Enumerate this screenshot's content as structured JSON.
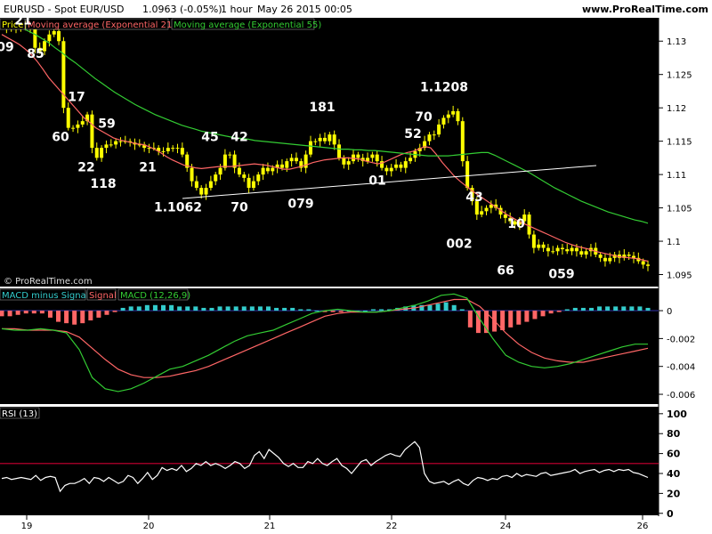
{
  "header": {
    "symbol": "EURUSD - Spot EUR/USD",
    "quote": "1.0963 (-0.05%)",
    "timeframe": "1 hour",
    "datetime": "May 26 2015 00:05",
    "website": "www.ProRealTime.com"
  },
  "watermark": "© ProRealTime.com",
  "colors": {
    "background": "#000000",
    "candle": "#ffff00",
    "ema21": "#ff6666",
    "ema55": "#33cc33",
    "trendline": "#ffffff",
    "hist_pos": "#33cccc",
    "hist_neg": "#ff6666",
    "macd": "#33cc33",
    "signal": "#ff6666",
    "rsi": "#ffffff",
    "rsi_level": "#cc0033"
  },
  "chart_data": [
    {
      "panel": "price",
      "type": "candlestick",
      "legend": [
        "Price",
        "Moving average (Exponential 21)",
        "Moving average (Exponential 55)"
      ],
      "ylim": [
        1.0932,
        1.1335
      ],
      "yticks": [
        "1.13",
        "1.125",
        "1.12",
        "1.115",
        "1.11",
        "1.105",
        "1.1",
        "1.095"
      ],
      "xticks": [
        "19",
        "20",
        "21",
        "22",
        "24",
        "26"
      ],
      "annotations": [
        "09",
        "21",
        "85",
        "60",
        "17",
        "59",
        "22",
        "118",
        "21",
        "45",
        "42",
        "1.1062",
        "70",
        "181",
        "079",
        "70",
        "52",
        "01",
        "1.1208",
        "43",
        "002",
        "10",
        "66",
        "059"
      ],
      "annotation_values": [
        1.1285,
        1.1325,
        1.1275,
        1.115,
        1.121,
        1.117,
        1.1105,
        1.108,
        1.1105,
        1.115,
        1.115,
        1.1045,
        1.1045,
        1.1195,
        1.105,
        1.118,
        1.1155,
        1.1085,
        1.1225,
        1.106,
        1.099,
        1.102,
        1.095,
        1.0945
      ],
      "close": [
        1.1325,
        1.132,
        1.1318,
        1.1325,
        1.1322,
        1.132,
        1.1318,
        1.129,
        1.1285,
        1.13,
        1.131,
        1.1315,
        1.13,
        1.12,
        1.117,
        1.117,
        1.1175,
        1.118,
        1.119,
        1.114,
        1.1125,
        1.114,
        1.1145,
        1.1145,
        1.115,
        1.115,
        1.115,
        1.1148,
        1.1145,
        1.1145,
        1.114,
        1.114,
        1.114,
        1.1135,
        1.1135,
        1.114,
        1.114,
        1.114,
        1.113,
        1.111,
        1.109,
        1.108,
        1.107,
        1.108,
        1.109,
        1.11,
        1.111,
        1.113,
        1.113,
        1.111,
        1.11,
        1.1095,
        1.108,
        1.109,
        1.11,
        1.111,
        1.1105,
        1.111,
        1.1115,
        1.111,
        1.112,
        1.1125,
        1.112,
        1.111,
        1.113,
        1.115,
        1.115,
        1.1155,
        1.115,
        1.116,
        1.1145,
        1.1125,
        1.1115,
        1.112,
        1.113,
        1.1125,
        1.112,
        1.1125,
        1.113,
        1.112,
        1.111,
        1.1105,
        1.111,
        1.1115,
        1.111,
        1.112,
        1.1125,
        1.1135,
        1.114,
        1.115,
        1.116,
        1.116,
        1.1175,
        1.1185,
        1.119,
        1.1195,
        1.118,
        1.112,
        1.108,
        1.106,
        1.104,
        1.1045,
        1.105,
        1.1055,
        1.105,
        1.104,
        1.1035,
        1.103,
        1.1025,
        1.103,
        1.104,
        1.101,
        1.099,
        1.0995,
        1.099,
        1.0985,
        1.0985,
        1.099,
        1.0988,
        1.0985,
        1.099,
        1.0985,
        1.098,
        1.0985,
        1.099,
        1.098,
        1.0975,
        1.097,
        1.0975,
        1.098,
        1.0975,
        1.098,
        1.0978,
        1.0975,
        1.097,
        1.0965,
        1.0963
      ],
      "ema21": [
        1.131,
        1.1305,
        1.13,
        1.1295,
        1.1288,
        1.128,
        1.127,
        1.1258,
        1.1245,
        1.1235,
        1.1225,
        1.1215,
        1.1205,
        1.1195,
        1.1185,
        1.1178,
        1.117,
        1.1165,
        1.116,
        1.1155,
        1.1152,
        1.115,
        1.1148,
        1.1146,
        1.1145,
        1.1142,
        1.1138,
        1.1133,
        1.1127,
        1.1122,
        1.1118,
        1.1114,
        1.1112,
        1.111,
        1.1109,
        1.111,
        1.1111,
        1.1112,
        1.1112,
        1.1112,
        1.1113,
        1.1114,
        1.1115,
        1.1116,
        1.1115,
        1.1114,
        1.1112,
        1.111,
        1.1108,
        1.1108,
        1.111,
        1.1112,
        1.1115,
        1.1118,
        1.112,
        1.1122,
        1.1123,
        1.1124,
        1.1125,
        1.1125,
        1.1124,
        1.1123,
        1.112,
        1.1118,
        1.1116,
        1.1118,
        1.1122,
        1.1126,
        1.113,
        1.1133,
        1.1135,
        1.1138,
        1.1142,
        1.114,
        1.113,
        1.1118,
        1.1108,
        1.1098,
        1.109,
        1.1083,
        1.1076,
        1.107,
        1.1064,
        1.1058,
        1.1052,
        1.1046,
        1.104,
        1.1035,
        1.103,
        1.1026,
        1.1022,
        1.1018,
        1.1014,
        1.101,
        1.1006,
        1.1002,
        1.0998,
        1.0995,
        1.0992,
        1.099,
        1.0988,
        1.0985,
        1.0983,
        1.0981,
        1.0979,
        1.0977,
        1.0976,
        1.0975,
        1.0974,
        1.0972,
        1.097
      ],
      "ema55": [
        1.133,
        1.1328,
        1.1325,
        1.132,
        1.1315,
        1.131,
        1.1304,
        1.1298,
        1.129,
        1.1283,
        1.1275,
        1.1268,
        1.126,
        1.1252,
        1.1244,
        1.1237,
        1.123,
        1.1223,
        1.1217,
        1.1211,
        1.1205,
        1.12,
        1.1195,
        1.119,
        1.1186,
        1.1182,
        1.1178,
        1.1174,
        1.1171,
        1.1168,
        1.1165,
        1.1163,
        1.1161,
        1.1159,
        1.1157,
        1.1155,
        1.1154,
        1.1153,
        1.1151,
        1.115,
        1.1149,
        1.1148,
        1.1147,
        1.1146,
        1.1145,
        1.1144,
        1.1143,
        1.1142,
        1.1141,
        1.114,
        1.1139,
        1.1138,
        1.1138,
        1.1137,
        1.1137,
        1.1136,
        1.1136,
        1.1135,
        1.1134,
        1.1133,
        1.1132,
        1.1131,
        1.113,
        1.1129,
        1.1128,
        1.1128,
        1.1128,
        1.1128,
        1.1129,
        1.113,
        1.1131,
        1.1132,
        1.1133,
        1.1133,
        1.1129,
        1.1124,
        1.1119,
        1.1114,
        1.1109,
        1.1104,
        1.1098,
        1.1092,
        1.1086,
        1.108,
        1.1075,
        1.107,
        1.1065,
        1.106,
        1.1056,
        1.1052,
        1.1048,
        1.1044,
        1.1041,
        1.1038,
        1.1035,
        1.1032,
        1.103,
        1.1027
      ]
    },
    {
      "panel": "macd",
      "type": "bar+line",
      "legend": [
        "MACD minus Signal",
        "Signal",
        "MACD (12,26,9)"
      ],
      "ylim": [
        -0.0067,
        0.0016
      ],
      "yticks": [
        "0",
        "-0.002",
        "-0.004",
        "-0.006"
      ],
      "macd": [
        -0.0013,
        -0.0014,
        -0.0014,
        -0.0013,
        -0.0014,
        -0.0016,
        -0.0028,
        -0.0048,
        -0.0056,
        -0.0058,
        -0.0056,
        -0.0052,
        -0.0047,
        -0.0042,
        -0.004,
        -0.0036,
        -0.0032,
        -0.0027,
        -0.0022,
        -0.0018,
        -0.0016,
        -0.0014,
        -0.001,
        -0.0006,
        -0.0002,
        0.0,
        0.0001,
        0.0,
        -0.0001,
        -0.0001,
        0.0,
        0.0002,
        0.0004,
        0.0007,
        0.0011,
        0.0012,
        0.0009,
        -0.0006,
        -0.002,
        -0.0032,
        -0.0037,
        -0.004,
        -0.0041,
        -0.004,
        -0.0038,
        -0.0035,
        -0.0032,
        -0.0029,
        -0.0026,
        -0.0024,
        -0.0024
      ],
      "signal": [
        -0.0013,
        -0.0013,
        -0.0014,
        -0.0014,
        -0.0014,
        -0.0015,
        -0.0019,
        -0.0027,
        -0.0035,
        -0.0042,
        -0.0046,
        -0.0048,
        -0.0048,
        -0.0047,
        -0.0045,
        -0.0043,
        -0.004,
        -0.0036,
        -0.0032,
        -0.0028,
        -0.0024,
        -0.002,
        -0.0016,
        -0.0012,
        -0.0008,
        -0.0004,
        -0.0002,
        -0.0001,
        -0.0001,
        -0.0001,
        0.0,
        0.0001,
        0.0002,
        0.0004,
        0.0006,
        0.0008,
        0.0008,
        0.0003,
        -0.0006,
        -0.0016,
        -0.0024,
        -0.003,
        -0.0034,
        -0.0036,
        -0.0037,
        -0.0037,
        -0.0035,
        -0.0033,
        -0.0031,
        -0.0029,
        -0.0027
      ],
      "histogram": [
        -0.0004,
        -0.0004,
        -0.0003,
        -0.0002,
        -0.0002,
        -0.0002,
        -0.0005,
        -0.0008,
        -0.0009,
        -0.001,
        -0.0009,
        -0.0007,
        -0.0005,
        -0.0003,
        -0.0001,
        0.0002,
        0.0003,
        0.0003,
        0.0004,
        0.0004,
        0.0004,
        0.0004,
        0.0003,
        0.0003,
        0.0003,
        0.0002,
        0.0002,
        0.0003,
        0.0003,
        0.0003,
        0.0003,
        0.0003,
        0.0003,
        0.0003,
        0.0002,
        0.0002,
        0.0002,
        0.0001,
        0.0001,
        0.0,
        -0.0001,
        -0.0001,
        -0.0001,
        0.0,
        0.0,
        0.0,
        0.0001,
        0.0001,
        0.0001,
        0.0002,
        0.0003,
        0.0004,
        0.0004,
        0.0004,
        0.0005,
        0.0006,
        0.0004,
        0.0001,
        -0.0012,
        -0.0016,
        -0.0016,
        -0.0015,
        -0.0014,
        -0.0012,
        -0.001,
        -0.0008,
        -0.0006,
        -0.0004,
        -0.0002,
        -0.0001,
        0.0001,
        0.0002,
        0.0002,
        0.0002,
        0.0003,
        0.0003,
        0.0003,
        0.0003,
        0.0003,
        0.0003,
        0.0002
      ]
    },
    {
      "panel": "rsi",
      "type": "line",
      "legend": [
        "RSI (13)"
      ],
      "ylim": [
        -2,
        107
      ],
      "yticks": [
        "100",
        "80",
        "60",
        "40",
        "20",
        "0"
      ],
      "level": 50,
      "values": [
        35,
        36,
        34,
        35,
        36,
        35,
        34,
        38,
        33,
        36,
        37,
        36,
        22,
        28,
        30,
        30,
        32,
        35,
        30,
        36,
        35,
        32,
        36,
        33,
        30,
        32,
        38,
        36,
        30,
        35,
        41,
        34,
        38,
        46,
        43,
        45,
        43,
        48,
        42,
        45,
        50,
        48,
        52,
        48,
        50,
        48,
        45,
        48,
        52,
        50,
        45,
        48,
        58,
        62,
        55,
        64,
        60,
        56,
        50,
        47,
        50,
        46,
        46,
        52,
        50,
        55,
        50,
        48,
        52,
        55,
        48,
        45,
        40,
        46,
        52,
        54,
        48,
        52,
        55,
        58,
        60,
        58,
        57,
        64,
        68,
        72,
        66,
        40,
        32,
        30,
        31,
        32,
        29,
        32,
        34,
        30,
        28,
        33,
        36,
        35,
        33,
        35,
        34,
        37,
        38,
        36,
        40,
        37,
        39,
        38,
        37,
        40,
        41,
        38,
        39,
        40,
        41,
        42,
        44,
        40,
        42,
        43,
        44,
        41,
        43,
        44,
        42,
        44,
        43,
        44,
        41,
        40,
        38,
        36
      ]
    }
  ]
}
